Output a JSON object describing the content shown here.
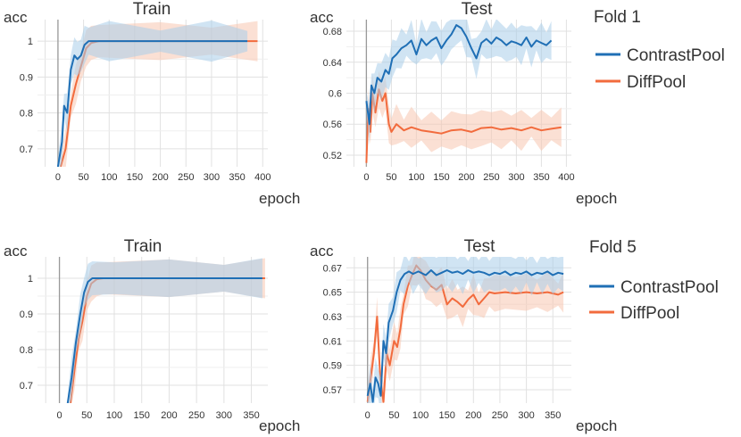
{
  "colors": {
    "contrastpool": "#1f6fb5",
    "contrastpool_light": "#a9cdea",
    "diffpool": "#f26b3d",
    "diffpool_light": "#f8c6b1",
    "grid": "#e1e1e1",
    "axis": "#999999",
    "text": "#333333"
  },
  "folds": [
    {
      "label": "Fold 1"
    },
    {
      "label": "Fold 5"
    }
  ],
  "legend": [
    {
      "name": "ContrastPool",
      "color_key": "contrastpool"
    },
    {
      "name": "DiffPool",
      "color_key": "diffpool"
    }
  ],
  "chart_data": [
    {
      "type": "line",
      "title": "Train",
      "ylabel": "acc",
      "xlabel": "epoch",
      "xlim": [
        -40,
        410
      ],
      "ylim": [
        0.65,
        1.06
      ],
      "xticks": [
        0,
        50,
        100,
        150,
        200,
        250,
        300,
        350,
        400
      ],
      "yticks": [
        0.7,
        0.8,
        0.9,
        1
      ],
      "ytick_labels": [
        "0.7",
        "0.8",
        "0.9",
        "1"
      ],
      "grid": true,
      "series": [
        {
          "name": "DiffPool",
          "color_key": "diffpool",
          "points": [
            [
              5,
              0.65
            ],
            [
              15,
              0.7
            ],
            [
              25,
              0.82
            ],
            [
              35,
              0.88
            ],
            [
              45,
              0.93
            ],
            [
              55,
              0.98
            ],
            [
              65,
              0.995
            ],
            [
              80,
              1
            ],
            [
              200,
              1
            ],
            [
              300,
              1
            ],
            [
              390,
              1
            ]
          ]
        },
        {
          "name": "ContrastPool",
          "color_key": "contrastpool",
          "points": [
            [
              0,
              0.65
            ],
            [
              8,
              0.72
            ],
            [
              12,
              0.82
            ],
            [
              18,
              0.8
            ],
            [
              25,
              0.92
            ],
            [
              32,
              0.96
            ],
            [
              38,
              0.95
            ],
            [
              45,
              0.96
            ],
            [
              52,
              0.99
            ],
            [
              60,
              1
            ],
            [
              100,
              1
            ],
            [
              200,
              1
            ],
            [
              300,
              1
            ],
            [
              370,
              1
            ]
          ]
        }
      ]
    },
    {
      "type": "line",
      "title": "Test",
      "ylabel": "acc",
      "xlabel": "epoch",
      "xlim": [
        -40,
        410
      ],
      "ylim": [
        0.505,
        0.695
      ],
      "xticks": [
        0,
        50,
        100,
        150,
        200,
        250,
        300,
        350,
        400
      ],
      "yticks": [
        0.52,
        0.56,
        0.6,
        0.64,
        0.68
      ],
      "ytick_labels": [
        "0.52",
        "0.56",
        "0.6",
        "0.64",
        "0.68"
      ],
      "grid": true,
      "series": [
        {
          "name": "DiffPool",
          "color_key": "diffpool",
          "points": [
            [
              0,
              0.51
            ],
            [
              4,
              0.58
            ],
            [
              8,
              0.55
            ],
            [
              12,
              0.6
            ],
            [
              18,
              0.575
            ],
            [
              25,
              0.605
            ],
            [
              32,
              0.59
            ],
            [
              38,
              0.6
            ],
            [
              45,
              0.56
            ],
            [
              50,
              0.55
            ],
            [
              60,
              0.56
            ],
            [
              75,
              0.552
            ],
            [
              90,
              0.556
            ],
            [
              110,
              0.552
            ],
            [
              130,
              0.55
            ],
            [
              150,
              0.548
            ],
            [
              170,
              0.552
            ],
            [
              190,
              0.553
            ],
            [
              210,
              0.55
            ],
            [
              230,
              0.555
            ],
            [
              250,
              0.556
            ],
            [
              270,
              0.553
            ],
            [
              290,
              0.555
            ],
            [
              310,
              0.552
            ],
            [
              330,
              0.556
            ],
            [
              350,
              0.552
            ],
            [
              370,
              0.554
            ],
            [
              390,
              0.556
            ]
          ]
        },
        {
          "name": "ContrastPool",
          "color_key": "contrastpool",
          "points": [
            [
              0,
              0.59
            ],
            [
              6,
              0.56
            ],
            [
              10,
              0.61
            ],
            [
              16,
              0.6
            ],
            [
              22,
              0.62
            ],
            [
              30,
              0.615
            ],
            [
              38,
              0.63
            ],
            [
              45,
              0.625
            ],
            [
              52,
              0.645
            ],
            [
              60,
              0.65
            ],
            [
              70,
              0.658
            ],
            [
              80,
              0.662
            ],
            [
              90,
              0.668
            ],
            [
              100,
              0.65
            ],
            [
              110,
              0.67
            ],
            [
              120,
              0.662
            ],
            [
              130,
              0.668
            ],
            [
              140,
              0.672
            ],
            [
              150,
              0.658
            ],
            [
              160,
              0.668
            ],
            [
              170,
              0.676
            ],
            [
              180,
              0.688
            ],
            [
              190,
              0.684
            ],
            [
              200,
              0.673
            ],
            [
              210,
              0.658
            ],
            [
              220,
              0.645
            ],
            [
              230,
              0.665
            ],
            [
              240,
              0.67
            ],
            [
              250,
              0.664
            ],
            [
              260,
              0.672
            ],
            [
              270,
              0.668
            ],
            [
              280,
              0.662
            ],
            [
              290,
              0.667
            ],
            [
              300,
              0.665
            ],
            [
              310,
              0.662
            ],
            [
              320,
              0.672
            ],
            [
              330,
              0.66
            ],
            [
              340,
              0.668
            ],
            [
              350,
              0.665
            ],
            [
              360,
              0.662
            ],
            [
              370,
              0.668
            ]
          ]
        }
      ]
    },
    {
      "type": "line",
      "title": "Train",
      "ylabel": "acc",
      "xlabel": "epoch",
      "xlim": [
        -40,
        380
      ],
      "ylim": [
        0.65,
        1.06
      ],
      "xticks": [
        0,
        50,
        100,
        150,
        200,
        250,
        300,
        350
      ],
      "yticks": [
        0.7,
        0.8,
        0.9,
        1
      ],
      "ytick_labels": [
        "0.7",
        "0.8",
        "0.9",
        "1"
      ],
      "grid": true,
      "series": [
        {
          "name": "DiffPool",
          "color_key": "diffpool",
          "points": [
            [
              20,
              0.65
            ],
            [
              28,
              0.75
            ],
            [
              35,
              0.83
            ],
            [
              42,
              0.88
            ],
            [
              50,
              0.95
            ],
            [
              58,
              0.985
            ],
            [
              68,
              0.997
            ],
            [
              80,
              1
            ],
            [
              200,
              1
            ],
            [
              300,
              1
            ],
            [
              375,
              1
            ]
          ]
        },
        {
          "name": "ContrastPool",
          "color_key": "contrastpool",
          "points": [
            [
              15,
              0.65
            ],
            [
              22,
              0.72
            ],
            [
              30,
              0.82
            ],
            [
              38,
              0.9
            ],
            [
              45,
              0.96
            ],
            [
              52,
              0.99
            ],
            [
              60,
              1
            ],
            [
              100,
              1
            ],
            [
              200,
              1
            ],
            [
              300,
              1
            ],
            [
              370,
              1
            ]
          ]
        }
      ]
    },
    {
      "type": "line",
      "title": "Test",
      "ylabel": "acc",
      "xlabel": "epoch",
      "xlim": [
        -40,
        385
      ],
      "ylim": [
        0.559,
        0.679
      ],
      "xticks": [
        0,
        50,
        100,
        150,
        200,
        250,
        300,
        350
      ],
      "yticks": [
        0.57,
        0.59,
        0.61,
        0.63,
        0.65,
        0.67
      ],
      "ytick_labels": [
        "0.57",
        "0.59",
        "0.61",
        "0.63",
        "0.65",
        "0.67"
      ],
      "grid": true,
      "series": [
        {
          "name": "DiffPool",
          "color_key": "diffpool",
          "points": [
            [
              0,
              0.56
            ],
            [
              6,
              0.58
            ],
            [
              12,
              0.6
            ],
            [
              18,
              0.63
            ],
            [
              24,
              0.58
            ],
            [
              30,
              0.56
            ],
            [
              36,
              0.6
            ],
            [
              42,
              0.59
            ],
            [
              50,
              0.61
            ],
            [
              56,
              0.605
            ],
            [
              62,
              0.62
            ],
            [
              68,
              0.64
            ],
            [
              76,
              0.655
            ],
            [
              84,
              0.664
            ],
            [
              92,
              0.672
            ],
            [
              100,
              0.668
            ],
            [
              110,
              0.66
            ],
            [
              120,
              0.655
            ],
            [
              130,
              0.652
            ],
            [
              140,
              0.656
            ],
            [
              150,
              0.64
            ],
            [
              160,
              0.645
            ],
            [
              170,
              0.642
            ],
            [
              180,
              0.638
            ],
            [
              190,
              0.644
            ],
            [
              200,
              0.648
            ],
            [
              210,
              0.64
            ],
            [
              220,
              0.645
            ],
            [
              230,
              0.65
            ],
            [
              240,
              0.649
            ],
            [
              260,
              0.65
            ],
            [
              280,
              0.649
            ],
            [
              300,
              0.65
            ],
            [
              320,
              0.649
            ],
            [
              340,
              0.65
            ],
            [
              360,
              0.648
            ],
            [
              370,
              0.65
            ]
          ]
        },
        {
          "name": "ContrastPool",
          "color_key": "contrastpool",
          "points": [
            [
              0,
              0.565
            ],
            [
              5,
              0.575
            ],
            [
              10,
              0.56
            ],
            [
              15,
              0.58
            ],
            [
              20,
              0.575
            ],
            [
              25,
              0.565
            ],
            [
              30,
              0.61
            ],
            [
              35,
              0.6
            ],
            [
              40,
              0.625
            ],
            [
              48,
              0.635
            ],
            [
              55,
              0.65
            ],
            [
              62,
              0.66
            ],
            [
              70,
              0.665
            ],
            [
              78,
              0.667
            ],
            [
              86,
              0.665
            ],
            [
              96,
              0.667
            ],
            [
              110,
              0.664
            ],
            [
              120,
              0.668
            ],
            [
              130,
              0.664
            ],
            [
              140,
              0.666
            ],
            [
              150,
              0.668
            ],
            [
              160,
              0.666
            ],
            [
              170,
              0.667
            ],
            [
              180,
              0.665
            ],
            [
              190,
              0.668
            ],
            [
              200,
              0.666
            ],
            [
              210,
              0.667
            ],
            [
              220,
              0.666
            ],
            [
              230,
              0.664
            ],
            [
              240,
              0.666
            ],
            [
              250,
              0.665
            ],
            [
              260,
              0.667
            ],
            [
              270,
              0.664
            ],
            [
              280,
              0.666
            ],
            [
              290,
              0.665
            ],
            [
              300,
              0.667
            ],
            [
              310,
              0.664
            ],
            [
              320,
              0.666
            ],
            [
              330,
              0.665
            ],
            [
              340,
              0.667
            ],
            [
              350,
              0.664
            ],
            [
              360,
              0.666
            ],
            [
              370,
              0.665
            ]
          ]
        }
      ]
    }
  ]
}
